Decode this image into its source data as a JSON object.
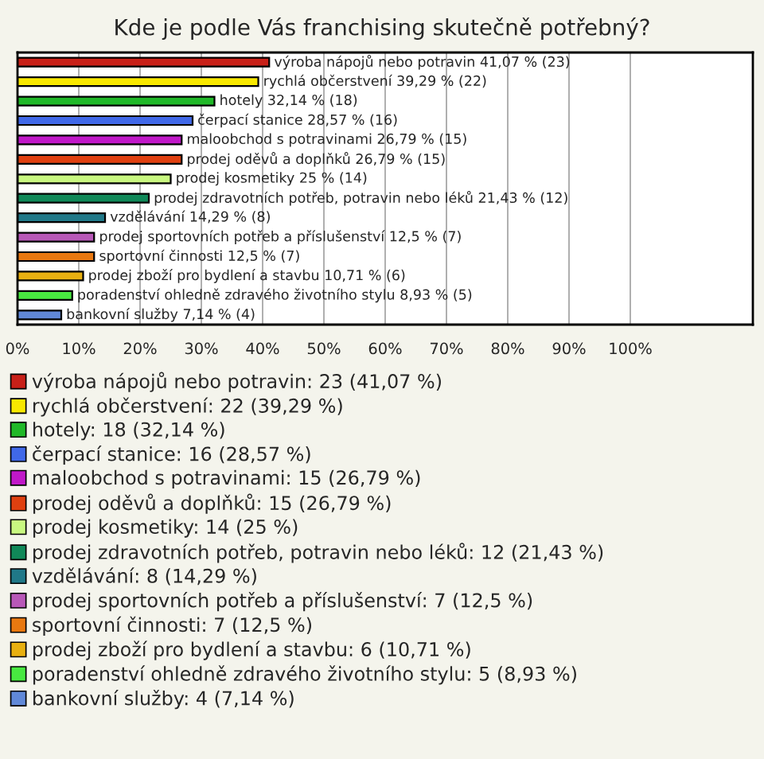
{
  "chart_data": {
    "type": "bar",
    "orientation": "horizontal",
    "title": "Kde je podle Vás franchising skutečně potřebný?",
    "categories": [
      null,
      null,
      null,
      null,
      null,
      null,
      null,
      null,
      null,
      null,
      null,
      null,
      null,
      null
    ],
    "series": [
      {
        "name": "výroba nápojů nebo potravin: 23 (41,07 %)",
        "color": "#c82018",
        "values": [
          41.07,
          null,
          null,
          null,
          null,
          null,
          null,
          null,
          null,
          null,
          null,
          null,
          null,
          null
        ],
        "value_labels": [
          "výroba nápojů nebo potravin 41,07 % (23)",
          null,
          null,
          null,
          null,
          null,
          null,
          null,
          null,
          null,
          null,
          null,
          null,
          null
        ]
      },
      {
        "name": "rychlá občerstvení: 22 (39,29 %)",
        "color": "#f8e800",
        "values": [
          null,
          39.29,
          null,
          null,
          null,
          null,
          null,
          null,
          null,
          null,
          null,
          null,
          null,
          null
        ],
        "value_labels": [
          null,
          "rychlá občerstvení 39,29 % (22)",
          null,
          null,
          null,
          null,
          null,
          null,
          null,
          null,
          null,
          null,
          null,
          null
        ]
      },
      {
        "name": "hotely: 18 (32,14 %)",
        "color": "#20b828",
        "values": [
          null,
          null,
          32.14,
          null,
          null,
          null,
          null,
          null,
          null,
          null,
          null,
          null,
          null,
          null
        ],
        "value_labels": [
          null,
          null,
          "hotely 32,14 % (18)",
          null,
          null,
          null,
          null,
          null,
          null,
          null,
          null,
          null,
          null,
          null
        ]
      },
      {
        "name": "čerpací stanice: 16 (28,57 %)",
        "color": "#4068e8",
        "values": [
          null,
          null,
          null,
          28.57,
          null,
          null,
          null,
          null,
          null,
          null,
          null,
          null,
          null,
          null
        ],
        "value_labels": [
          null,
          null,
          null,
          "čerpací stanice 28,57 % (16)",
          null,
          null,
          null,
          null,
          null,
          null,
          null,
          null,
          null,
          null
        ]
      },
      {
        "name": "maloobchod s potravinami: 15 (26,79 %)",
        "color": "#c018c8",
        "values": [
          null,
          null,
          null,
          null,
          26.79,
          null,
          null,
          null,
          null,
          null,
          null,
          null,
          null,
          null
        ],
        "value_labels": [
          null,
          null,
          null,
          null,
          "maloobchod s potravinami 26,79 % (15)",
          null,
          null,
          null,
          null,
          null,
          null,
          null,
          null,
          null
        ]
      },
      {
        "name": "prodej oděvů a doplňků: 15 (26,79 %)",
        "color": "#e04010",
        "values": [
          null,
          null,
          null,
          null,
          null,
          26.79,
          null,
          null,
          null,
          null,
          null,
          null,
          null,
          null
        ],
        "value_labels": [
          null,
          null,
          null,
          null,
          null,
          "prodej oděvů a doplňků 26,79 % (15)",
          null,
          null,
          null,
          null,
          null,
          null,
          null,
          null
        ]
      },
      {
        "name": "prodej kosmetiky: 14 (25 %)",
        "color": "#c8f880",
        "values": [
          null,
          null,
          null,
          null,
          null,
          null,
          25,
          null,
          null,
          null,
          null,
          null,
          null,
          null
        ],
        "value_labels": [
          null,
          null,
          null,
          null,
          null,
          null,
          "prodej kosmetiky 25 % (14)",
          null,
          null,
          null,
          null,
          null,
          null,
          null
        ]
      },
      {
        "name": "prodej zdravotních potřeb, potravin nebo léků: 12 (21,43 %)",
        "color": "#108858",
        "values": [
          null,
          null,
          null,
          null,
          null,
          null,
          null,
          21.43,
          null,
          null,
          null,
          null,
          null,
          null
        ],
        "value_labels": [
          null,
          null,
          null,
          null,
          null,
          null,
          null,
          "prodej zdravotních potřeb, potravin nebo léků 21,43 % (12)",
          null,
          null,
          null,
          null,
          null,
          null
        ]
      },
      {
        "name": "vzdělávání: 8 (14,29 %)",
        "color": "#207888",
        "values": [
          null,
          null,
          null,
          null,
          null,
          null,
          null,
          null,
          14.29,
          null,
          null,
          null,
          null,
          null
        ],
        "value_labels": [
          null,
          null,
          null,
          null,
          null,
          null,
          null,
          null,
          "vzdělávání 14,29 % (8)",
          null,
          null,
          null,
          null,
          null
        ]
      },
      {
        "name": "prodej sportovních potřeb a příslušenství: 7 (12,5 %)",
        "color": "#b858b8",
        "values": [
          null,
          null,
          null,
          null,
          null,
          null,
          null,
          null,
          null,
          12.5,
          null,
          null,
          null,
          null
        ],
        "value_labels": [
          null,
          null,
          null,
          null,
          null,
          null,
          null,
          null,
          null,
          "prodej sportovních potřeb a příslušenství 12,5 % (7)",
          null,
          null,
          null,
          null
        ]
      },
      {
        "name": "sportovní činnosti: 7 (12,5 %)",
        "color": "#e87810",
        "values": [
          null,
          null,
          null,
          null,
          null,
          null,
          null,
          null,
          null,
          null,
          12.5,
          null,
          null,
          null
        ],
        "value_labels": [
          null,
          null,
          null,
          null,
          null,
          null,
          null,
          null,
          null,
          null,
          "sportovní činnosti 12,5 % (7)",
          null,
          null,
          null
        ]
      },
      {
        "name": "prodej zboží pro bydlení a stavbu: 6 (10,71 %)",
        "color": "#e8b010",
        "values": [
          null,
          null,
          null,
          null,
          null,
          null,
          null,
          null,
          null,
          null,
          null,
          10.71,
          null,
          null
        ],
        "value_labels": [
          null,
          null,
          null,
          null,
          null,
          null,
          null,
          null,
          null,
          null,
          null,
          "prodej zboží pro bydlení a stavbu 10,71 % (6)",
          null,
          null
        ]
      },
      {
        "name": "poradenství ohledně zdravého životního stylu: 5 (8,93 %)",
        "color": "#48e840",
        "values": [
          null,
          null,
          null,
          null,
          null,
          null,
          null,
          null,
          null,
          null,
          null,
          null,
          8.93,
          null
        ],
        "value_labels": [
          null,
          null,
          null,
          null,
          null,
          null,
          null,
          null,
          null,
          null,
          null,
          null,
          "poradenství ohledně zdravého životního stylu 8,93 % (5)",
          null
        ]
      },
      {
        "name": "bankovní služby: 4 (7,14 %)",
        "color": "#6088d8",
        "values": [
          null,
          null,
          null,
          null,
          null,
          null,
          null,
          null,
          null,
          null,
          null,
          null,
          null,
          7.14
        ],
        "value_labels": [
          null,
          null,
          null,
          null,
          null,
          null,
          null,
          null,
          null,
          null,
          null,
          null,
          null,
          "bankovní služby 7,14 % (4)"
        ]
      }
    ],
    "xlim": [
      0,
      120
    ],
    "xticks": [
      {
        "value": 0,
        "label": "0%"
      },
      {
        "value": 10,
        "label": "10%"
      },
      {
        "value": 20,
        "label": "20%"
      },
      {
        "value": 30,
        "label": "30%"
      },
      {
        "value": 40,
        "label": "40%"
      },
      {
        "value": 50,
        "label": "50%"
      },
      {
        "value": 60,
        "label": "60%"
      },
      {
        "value": 70,
        "label": "70%"
      },
      {
        "value": 80,
        "label": "80%"
      },
      {
        "value": 90,
        "label": "90%"
      },
      {
        "value": 100,
        "label": "100%"
      }
    ],
    "grid": "x",
    "legend": "bottom",
    "tick_labels": "x"
  }
}
